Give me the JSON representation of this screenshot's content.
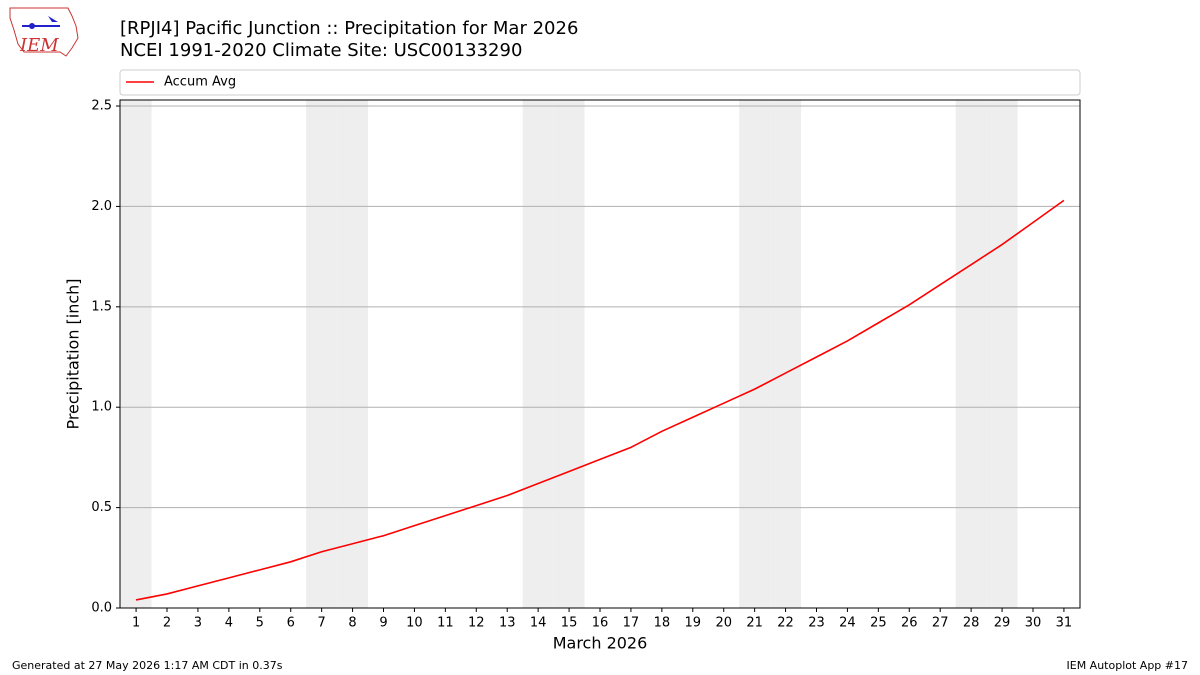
{
  "chart_data": {
    "type": "line",
    "title": "[RPJI4] Pacific Junction :: Precipitation for Mar 2026",
    "subtitle": "NCEI 1991-2020 Climate Site: USC00133290",
    "x_label": "March 2026",
    "y_label": "Precipitation [inch]",
    "x": [
      1,
      2,
      3,
      4,
      5,
      6,
      7,
      8,
      9,
      10,
      11,
      12,
      13,
      14,
      15,
      16,
      17,
      18,
      19,
      20,
      21,
      22,
      23,
      24,
      25,
      26,
      27,
      28,
      29,
      30,
      31
    ],
    "series": [
      {
        "name": "Accum Avg",
        "color": "#ff0000",
        "values": [
          0.04,
          0.07,
          0.11,
          0.15,
          0.19,
          0.23,
          0.28,
          0.32,
          0.36,
          0.41,
          0.46,
          0.51,
          0.56,
          0.62,
          0.68,
          0.74,
          0.8,
          0.88,
          0.95,
          1.02,
          1.09,
          1.17,
          1.25,
          1.33,
          1.42,
          1.51,
          1.61,
          1.71,
          1.81,
          1.92,
          2.03
        ]
      }
    ],
    "xlim": [
      0.48,
      31.52
    ],
    "xticks": [
      1,
      2,
      3,
      4,
      5,
      6,
      7,
      8,
      9,
      10,
      11,
      12,
      13,
      14,
      15,
      16,
      17,
      18,
      19,
      20,
      21,
      22,
      23,
      24,
      25,
      26,
      27,
      28,
      29,
      30,
      31
    ],
    "ylim": [
      0,
      2.53
    ],
    "yticks": [
      {
        "value": 0,
        "label": "0.0"
      },
      0.5,
      {
        "value": 1,
        "label": "1.0"
      },
      1.5,
      {
        "value": 2,
        "label": "2.0"
      },
      2.5
    ],
    "grid": true,
    "legend": "top",
    "shaded_days": [
      1,
      7,
      8,
      14,
      15,
      21,
      22,
      28,
      29
    ],
    "shade_color": "#eeeeee"
  },
  "logo_text": "IEM",
  "footer_left": "Generated at 27 May 2026 1:17 AM CDT in 0.37s",
  "footer_right": "IEM Autoplot App #17"
}
